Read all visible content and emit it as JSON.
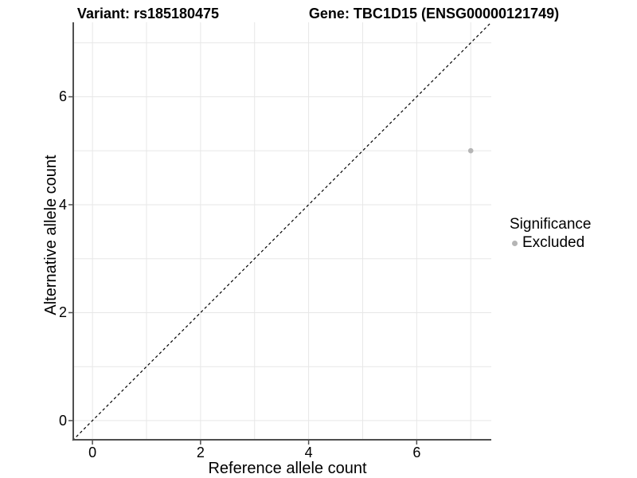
{
  "titles": {
    "variant": "Variant: rs185180475",
    "gene": "Gene: TBC1D15 (ENSG00000121749)"
  },
  "axes": {
    "x_label": "Reference allele count",
    "y_label": "Alternative allele count"
  },
  "legend": {
    "title": "Significance",
    "items": [
      {
        "label": "Excluded",
        "color": "#b5b5b5"
      }
    ]
  },
  "colors": {
    "grid": "#e7e7e7",
    "axis_line": "#4f4f4f",
    "tick_mark": "#4f4f4f",
    "reference_line": "#000000",
    "point": "#b5b5b5",
    "background": "#ffffff",
    "text": "#000000"
  },
  "chart_data": {
    "type": "scatter",
    "title": "Variant: rs185180475 — Gene: TBC1D15 (ENSG00000121749)",
    "xlabel": "Reference allele count",
    "ylabel": "Alternative allele count",
    "xlim": [
      -0.37,
      7.38
    ],
    "ylim": [
      -0.37,
      7.38
    ],
    "x_ticks": [
      0,
      2,
      4,
      6
    ],
    "y_ticks": [
      0,
      2,
      4,
      6
    ],
    "grid": "on",
    "grid_step": 1,
    "legend_position": "right",
    "legend_title": "Significance",
    "series": [
      {
        "name": "Excluded",
        "color": "#b5b5b5",
        "point_radius": 3.3,
        "points": [
          {
            "x": 7,
            "y": 5
          }
        ]
      }
    ],
    "reference_line": {
      "kind": "identity",
      "style": "dashed",
      "color": "#000000"
    }
  }
}
